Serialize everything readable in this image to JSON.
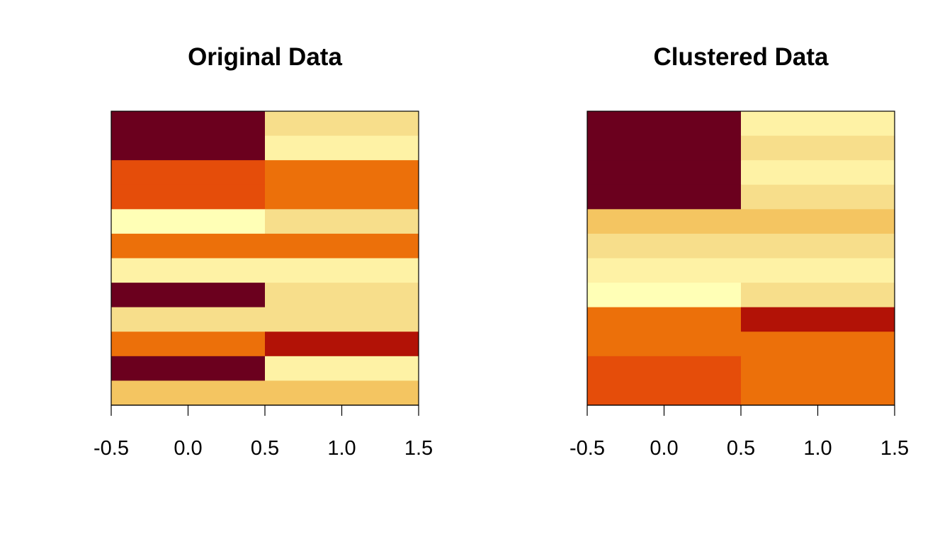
{
  "chart_data": [
    {
      "type": "heatmap",
      "title": "Original Data",
      "xlabel": "",
      "ylabel": "",
      "xlim": [
        -0.5,
        1.5
      ],
      "ylim": [
        -0.5,
        11.5
      ],
      "x_ticks": [
        "-0.5",
        "0.0",
        "0.5",
        "1.0",
        "1.5"
      ],
      "x_tick_values": [
        -0.5,
        0.0,
        0.5,
        1.0,
        1.5
      ],
      "columns": [
        0,
        1
      ],
      "rows_top_to_bottom": [
        [
          "#6B001E",
          "#F7DE8B"
        ],
        [
          "#6B001E",
          "#FEF2A5"
        ],
        [
          "#E54D0A",
          "#EC700A"
        ],
        [
          "#E54D0A",
          "#EC700A"
        ],
        [
          "#FFFFB6",
          "#F7DE8B"
        ],
        [
          "#EC700A",
          "#EC700A"
        ],
        [
          "#FEF2A5",
          "#FEF2A5"
        ],
        [
          "#6B001E",
          "#F7DE8B"
        ],
        [
          "#F7DE8B",
          "#F7DE8B"
        ],
        [
          "#EC700A",
          "#B21206"
        ],
        [
          "#6B001E",
          "#FEF2A5"
        ],
        [
          "#F4C561",
          "#F4C561"
        ]
      ],
      "grid": false,
      "legend": "none"
    },
    {
      "type": "heatmap",
      "title": "Clustered Data",
      "xlabel": "",
      "ylabel": "",
      "xlim": [
        -0.5,
        1.5
      ],
      "ylim": [
        -0.5,
        11.5
      ],
      "x_ticks": [
        "-0.5",
        "0.0",
        "0.5",
        "1.0",
        "1.5"
      ],
      "x_tick_values": [
        -0.5,
        0.0,
        0.5,
        1.0,
        1.5
      ],
      "columns": [
        0,
        1
      ],
      "rows_top_to_bottom": [
        [
          "#6B001E",
          "#FEF2A5"
        ],
        [
          "#6B001E",
          "#F7DE8B"
        ],
        [
          "#6B001E",
          "#FEF2A5"
        ],
        [
          "#6B001E",
          "#F7DE8B"
        ],
        [
          "#F4C561",
          "#F4C561"
        ],
        [
          "#F7DE8B",
          "#F7DE8B"
        ],
        [
          "#FEF2A5",
          "#FEF2A5"
        ],
        [
          "#FFFFB6",
          "#F7DE8B"
        ],
        [
          "#EC700A",
          "#B21206"
        ],
        [
          "#EC700A",
          "#EC700A"
        ],
        [
          "#E54D0A",
          "#EC700A"
        ],
        [
          "#E54D0A",
          "#EC700A"
        ]
      ],
      "grid": false,
      "legend": "none"
    }
  ]
}
